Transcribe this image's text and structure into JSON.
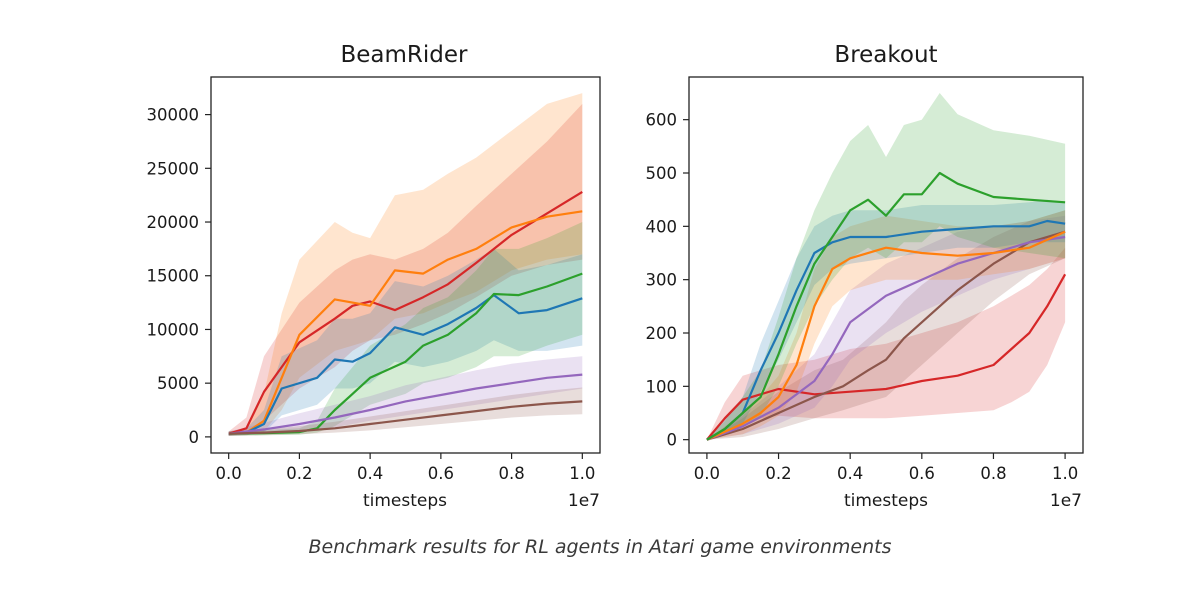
{
  "caption": "Benchmark results for RL agents in Atari game environments",
  "colors": {
    "blue": "#1f77b4",
    "orange": "#ff7f0e",
    "green": "#2ca02c",
    "red": "#d62728",
    "purple": "#9467bd",
    "brown": "#8c564b"
  },
  "chart_data": [
    {
      "type": "line",
      "title": "BeamRider",
      "xlabel": "timesteps",
      "x_multiplier": "1e7",
      "ylabel": "",
      "xlim": [
        -0.05,
        1.05
      ],
      "ylim": [
        -1500,
        33500
      ],
      "xticks": [
        0.0,
        0.2,
        0.4,
        0.6,
        0.8,
        1.0
      ],
      "xtick_labels": [
        "0.0",
        "0.2",
        "0.4",
        "0.6",
        "0.8",
        "1.0"
      ],
      "yticks": [
        0,
        5000,
        10000,
        15000,
        20000,
        25000,
        30000
      ],
      "ytick_labels": [
        "0",
        "5000",
        "10000",
        "15000",
        "20000",
        "25000",
        "30000"
      ],
      "series": [
        {
          "name": "red",
          "color": "#d62728",
          "x": [
            0.0,
            0.05,
            0.1,
            0.2,
            0.3,
            0.35,
            0.4,
            0.47,
            0.55,
            0.62,
            0.7,
            0.8,
            0.9,
            1.0
          ],
          "y": [
            300,
            800,
            4200,
            8800,
            11000,
            12200,
            12600,
            11800,
            13000,
            14200,
            16200,
            18800,
            20800,
            22800
          ],
          "lower": [
            100,
            300,
            1500,
            4500,
            6500,
            8000,
            9000,
            9500,
            10500,
            11500,
            13000,
            15000,
            16000,
            16500
          ],
          "upper": [
            500,
            1800,
            7500,
            12500,
            15500,
            16500,
            17000,
            16500,
            17500,
            19000,
            21500,
            24500,
            27500,
            31000
          ]
        },
        {
          "name": "orange",
          "color": "#ff7f0e",
          "x": [
            0.0,
            0.05,
            0.1,
            0.15,
            0.2,
            0.3,
            0.35,
            0.4,
            0.47,
            0.55,
            0.62,
            0.7,
            0.8,
            0.9,
            1.0
          ],
          "y": [
            300,
            400,
            1500,
            5500,
            9500,
            12800,
            12500,
            12200,
            15500,
            15200,
            16500,
            17500,
            19500,
            20500,
            21000
          ],
          "lower": [
            100,
            150,
            500,
            2500,
            5500,
            8000,
            8500,
            9000,
            11000,
            11500,
            12500,
            13500,
            15500,
            16500,
            17000
          ],
          "upper": [
            500,
            800,
            4000,
            11500,
            16500,
            20000,
            19000,
            18500,
            22500,
            23000,
            24500,
            26000,
            28500,
            31000,
            32000
          ]
        },
        {
          "name": "blue",
          "color": "#1f77b4",
          "x": [
            0.0,
            0.05,
            0.1,
            0.15,
            0.25,
            0.3,
            0.35,
            0.4,
            0.47,
            0.55,
            0.62,
            0.7,
            0.75,
            0.82,
            0.9,
            1.0
          ],
          "y": [
            300,
            400,
            1200,
            4500,
            5500,
            7200,
            7000,
            7800,
            10200,
            9500,
            10500,
            12000,
            13200,
            11500,
            11800,
            12900
          ],
          "lower": [
            100,
            150,
            400,
            2000,
            3000,
            4500,
            4500,
            5000,
            7000,
            6500,
            7000,
            8000,
            9000,
            8000,
            8000,
            8500
          ],
          "upper": [
            500,
            800,
            2500,
            7500,
            9000,
            11000,
            11000,
            11500,
            14500,
            14000,
            15000,
            16500,
            17500,
            15500,
            16000,
            17000
          ]
        },
        {
          "name": "green",
          "color": "#2ca02c",
          "x": [
            0.0,
            0.1,
            0.2,
            0.25,
            0.3,
            0.35,
            0.4,
            0.5,
            0.55,
            0.62,
            0.7,
            0.75,
            0.82,
            0.9,
            1.0
          ],
          "y": [
            300,
            350,
            450,
            800,
            2500,
            4000,
            5500,
            7000,
            8500,
            9500,
            11500,
            13300,
            13200,
            14000,
            15200
          ],
          "lower": [
            100,
            150,
            200,
            400,
            1000,
            2000,
            3000,
            4000,
            5000,
            5500,
            6500,
            7500,
            7500,
            8500,
            9500
          ],
          "upper": [
            500,
            600,
            800,
            1500,
            4500,
            6500,
            8500,
            10500,
            12000,
            13000,
            15500,
            17500,
            17500,
            18500,
            20000
          ]
        },
        {
          "name": "purple",
          "color": "#9467bd",
          "x": [
            0.0,
            0.1,
            0.2,
            0.3,
            0.4,
            0.5,
            0.6,
            0.7,
            0.8,
            0.9,
            1.0
          ],
          "y": [
            300,
            700,
            1200,
            1800,
            2500,
            3300,
            3900,
            4500,
            5000,
            5500,
            5800
          ],
          "lower": [
            100,
            300,
            500,
            900,
            1500,
            2000,
            2500,
            3000,
            3500,
            4000,
            4500
          ],
          "upper": [
            500,
            1300,
            2200,
            3000,
            3800,
            4800,
            5500,
            6200,
            6800,
            7200,
            7500
          ]
        },
        {
          "name": "brown",
          "color": "#8c564b",
          "x": [
            0.0,
            0.1,
            0.2,
            0.3,
            0.4,
            0.5,
            0.6,
            0.7,
            0.8,
            0.9,
            1.0
          ],
          "y": [
            300,
            400,
            550,
            800,
            1200,
            1600,
            2000,
            2400,
            2800,
            3100,
            3300
          ],
          "lower": [
            100,
            150,
            250,
            400,
            600,
            900,
            1200,
            1500,
            1800,
            2000,
            2100
          ],
          "upper": [
            500,
            700,
            1000,
            1400,
            1900,
            2400,
            2900,
            3400,
            3900,
            4300,
            4600
          ]
        }
      ]
    },
    {
      "type": "line",
      "title": "Breakout",
      "xlabel": "timesteps",
      "x_multiplier": "1e7",
      "ylabel": "",
      "xlim": [
        -0.05,
        1.05
      ],
      "ylim": [
        -25,
        680
      ],
      "xticks": [
        0.0,
        0.2,
        0.4,
        0.6,
        0.8,
        1.0
      ],
      "xtick_labels": [
        "0.0",
        "0.2",
        "0.4",
        "0.6",
        "0.8",
        "1.0"
      ],
      "yticks": [
        0,
        100,
        200,
        300,
        400,
        500,
        600
      ],
      "ytick_labels": [
        "0",
        "100",
        "200",
        "300",
        "400",
        "500",
        "600"
      ],
      "series": [
        {
          "name": "red",
          "color": "#d62728",
          "x": [
            0.0,
            0.05,
            0.1,
            0.15,
            0.2,
            0.3,
            0.4,
            0.5,
            0.6,
            0.7,
            0.8,
            0.85,
            0.9,
            0.95,
            1.0
          ],
          "y": [
            0,
            40,
            75,
            85,
            95,
            85,
            90,
            95,
            110,
            120,
            140,
            170,
            200,
            250,
            310
          ],
          "lower": [
            0,
            10,
            30,
            40,
            45,
            40,
            40,
            40,
            45,
            50,
            55,
            70,
            90,
            140,
            220
          ],
          "upper": [
            0,
            70,
            120,
            130,
            140,
            150,
            170,
            180,
            200,
            220,
            250,
            270,
            290,
            320,
            360
          ]
        },
        {
          "name": "brown",
          "color": "#8c564b",
          "x": [
            0.0,
            0.1,
            0.2,
            0.3,
            0.38,
            0.45,
            0.5,
            0.55,
            0.6,
            0.7,
            0.8,
            0.9,
            1.0
          ],
          "y": [
            0,
            20,
            50,
            80,
            100,
            130,
            150,
            190,
            220,
            280,
            330,
            370,
            390
          ],
          "lower": [
            0,
            5,
            20,
            40,
            55,
            70,
            80,
            110,
            140,
            200,
            260,
            310,
            340
          ],
          "upper": [
            0,
            40,
            90,
            130,
            150,
            190,
            220,
            260,
            290,
            340,
            380,
            410,
            430
          ]
        },
        {
          "name": "purple",
          "color": "#9467bd",
          "x": [
            0.0,
            0.1,
            0.2,
            0.3,
            0.35,
            0.4,
            0.5,
            0.6,
            0.7,
            0.8,
            0.9,
            1.0
          ],
          "y": [
            0,
            25,
            60,
            110,
            160,
            220,
            270,
            300,
            330,
            350,
            370,
            380
          ],
          "lower": [
            0,
            10,
            30,
            60,
            100,
            150,
            200,
            240,
            270,
            300,
            320,
            340
          ],
          "upper": [
            0,
            45,
            100,
            160,
            220,
            280,
            330,
            360,
            390,
            400,
            410,
            420
          ]
        },
        {
          "name": "orange",
          "color": "#ff7f0e",
          "x": [
            0.0,
            0.1,
            0.15,
            0.2,
            0.25,
            0.3,
            0.35,
            0.4,
            0.5,
            0.6,
            0.7,
            0.8,
            0.9,
            1.0
          ],
          "y": [
            0,
            30,
            50,
            80,
            140,
            250,
            320,
            340,
            360,
            350,
            345,
            350,
            360,
            390
          ],
          "lower": [
            0,
            10,
            25,
            45,
            90,
            180,
            250,
            280,
            300,
            300,
            300,
            310,
            320,
            340
          ],
          "upper": [
            0,
            50,
            80,
            120,
            200,
            320,
            380,
            400,
            420,
            410,
            400,
            400,
            410,
            430
          ]
        },
        {
          "name": "blue",
          "color": "#1f77b4",
          "x": [
            0.0,
            0.05,
            0.1,
            0.15,
            0.2,
            0.25,
            0.3,
            0.35,
            0.4,
            0.5,
            0.6,
            0.7,
            0.8,
            0.9,
            0.95,
            1.0
          ],
          "y": [
            0,
            20,
            50,
            130,
            200,
            280,
            350,
            370,
            380,
            380,
            390,
            395,
            400,
            400,
            410,
            405
          ],
          "lower": [
            0,
            10,
            30,
            90,
            150,
            220,
            290,
            320,
            330,
            340,
            350,
            360,
            360,
            370,
            370,
            370
          ],
          "upper": [
            0,
            40,
            80,
            180,
            260,
            340,
            400,
            420,
            430,
            430,
            440,
            440,
            440,
            445,
            450,
            445
          ]
        },
        {
          "name": "green",
          "color": "#2ca02c",
          "x": [
            0.0,
            0.05,
            0.1,
            0.15,
            0.2,
            0.25,
            0.3,
            0.35,
            0.4,
            0.45,
            0.5,
            0.55,
            0.6,
            0.65,
            0.7,
            0.8,
            0.9,
            1.0
          ],
          "y": [
            0,
            20,
            50,
            80,
            160,
            250,
            330,
            380,
            430,
            450,
            420,
            460,
            460,
            500,
            480,
            455,
            450,
            445
          ],
          "lower": [
            0,
            10,
            25,
            45,
            100,
            180,
            250,
            300,
            340,
            360,
            340,
            370,
            370,
            400,
            380,
            360,
            350,
            340
          ],
          "upper": [
            0,
            35,
            80,
            130,
            230,
            340,
            430,
            500,
            560,
            590,
            530,
            590,
            600,
            650,
            610,
            580,
            570,
            555
          ]
        }
      ]
    }
  ]
}
